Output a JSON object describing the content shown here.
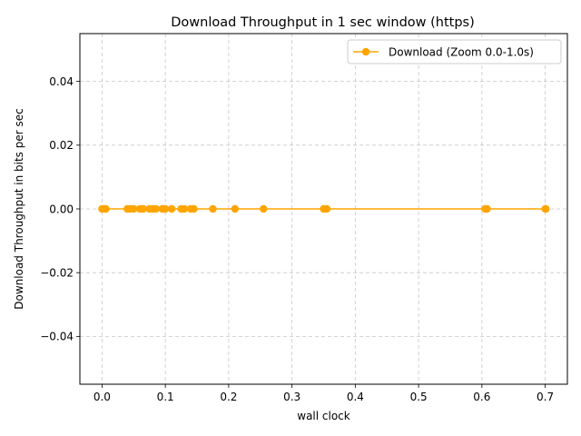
{
  "chart_data": {
    "type": "line",
    "title": "Download Throughput in 1 sec window (https)",
    "xlabel": "wall clock",
    "ylabel": "Download Throughput in bits per sec",
    "xlim": [
      -0.035,
      0.735
    ],
    "ylim": [
      -0.055,
      0.055
    ],
    "xticks": [
      0.0,
      0.1,
      0.2,
      0.3,
      0.4,
      0.5,
      0.6,
      0.7
    ],
    "xtick_labels": [
      "0.0",
      "0.1",
      "0.2",
      "0.3",
      "0.4",
      "0.5",
      "0.6",
      "0.7"
    ],
    "yticks": [
      -0.04,
      -0.02,
      0.0,
      0.02,
      0.04
    ],
    "ytick_labels": [
      "−0.04",
      "−0.02",
      "0.00",
      "0.02",
      "0.04"
    ],
    "grid": true,
    "legend_position": "top-right",
    "series": [
      {
        "name": "Download (Zoom 0.0-1.0s)",
        "color": "#ffa500",
        "marker": "circle",
        "x": [
          0.0,
          0.003,
          0.006,
          0.04,
          0.045,
          0.05,
          0.06,
          0.065,
          0.075,
          0.08,
          0.085,
          0.095,
          0.1,
          0.11,
          0.125,
          0.13,
          0.14,
          0.145,
          0.175,
          0.21,
          0.255,
          0.35,
          0.355,
          0.605,
          0.608,
          0.7,
          0.701
        ],
        "y": [
          0,
          0,
          0,
          0,
          0,
          0,
          0,
          0,
          0,
          0,
          0,
          0,
          0,
          0,
          0,
          0,
          0,
          0,
          0,
          0,
          0,
          0,
          0,
          0,
          0,
          0,
          0
        ]
      }
    ]
  }
}
